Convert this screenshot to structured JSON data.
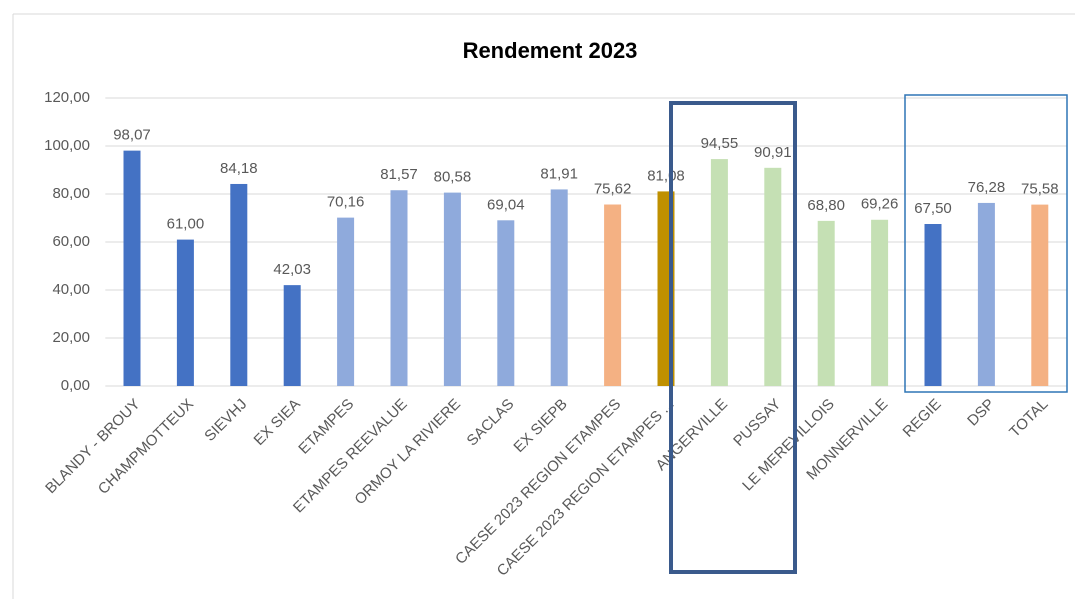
{
  "chart_data": {
    "type": "bar",
    "title": "Rendement 2023",
    "categories": [
      "BLANDY - BROUY",
      "CHAMPMOTTEUX",
      "SIEVHJ",
      "EX SIEA",
      "ETAMPES",
      "ETAMPES REEVALUE",
      "ORMOY LA RIVIERE",
      "SACLAS",
      "EX SIEPB",
      "CAESE 2023 REGION ETAMPES",
      "CAESE 2023 REGION ETAMPES ...",
      "ANGERVILLE",
      "PUSSAY",
      "LE MEREVILLOIS",
      "MONNERVILLE",
      "REGIE",
      "DSP",
      "TOTAL"
    ],
    "values": [
      98.07,
      61.0,
      84.18,
      42.03,
      70.16,
      81.57,
      80.58,
      69.04,
      81.91,
      75.62,
      81.08,
      94.55,
      90.91,
      68.8,
      69.26,
      67.5,
      76.28,
      75.58
    ],
    "value_labels": [
      "98,07",
      "61,00",
      "84,18",
      "42,03",
      "70,16",
      "81,57",
      "80,58",
      "69,04",
      "81,91",
      "75,62",
      "81,08",
      "94,55",
      "90,91",
      "68,80",
      "69,26",
      "67,50",
      "76,28",
      "75,58"
    ],
    "colors": [
      "#4472c4",
      "#4472c4",
      "#4472c4",
      "#4472c4",
      "#8faadc",
      "#8faadc",
      "#8faadc",
      "#8faadc",
      "#8faadc",
      "#f4b183",
      "#bf9000",
      "#c5e0b4",
      "#c5e0b4",
      "#c5e0b4",
      "#c5e0b4",
      "#4472c4",
      "#8faadc",
      "#f4b183"
    ],
    "ylim": [
      0,
      120
    ],
    "yticks": [
      {
        "value": 0,
        "label": "0,00"
      },
      {
        "value": 20,
        "label": "20,00"
      },
      {
        "value": 40,
        "label": "40,00"
      },
      {
        "value": 60,
        "label": "60,00"
      },
      {
        "value": 80,
        "label": "80,00"
      },
      {
        "value": 100,
        "label": "100,00"
      },
      {
        "value": 120,
        "label": "120,00"
      }
    ],
    "grid": true
  }
}
